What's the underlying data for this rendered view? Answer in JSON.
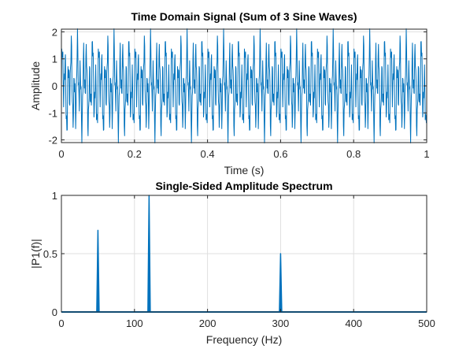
{
  "chart_data": [
    {
      "type": "line",
      "title": "Time Domain Signal (Sum of 3 Sine Waves)",
      "xlabel": "Time (s)",
      "ylabel": "Amplitude",
      "xlim": [
        0,
        1
      ],
      "ylim": [
        -2.1,
        2.1
      ],
      "xticks": [
        "0",
        "0.2",
        "0.4",
        "0.6",
        "0.8",
        "1"
      ],
      "yticks": [
        "-2",
        "-1",
        "0",
        "1",
        "2"
      ],
      "grid": true,
      "series": [
        {
          "signal_components": [
            {
              "frequency_hz": 50,
              "amplitude": 0.7
            },
            {
              "frequency_hz": 120,
              "amplitude": 1.0
            },
            {
              "frequency_hz": 300,
              "amplitude": 0.5
            }
          ],
          "sample_rate_hz": 1000,
          "samples": 1000,
          "color": "#0072BD"
        }
      ]
    },
    {
      "type": "line",
      "title": "Single-Sided Amplitude Spectrum",
      "xlabel": "Frequency (Hz)",
      "ylabel": "|P1(f)|",
      "xlim": [
        0,
        500
      ],
      "ylim": [
        0,
        1
      ],
      "xticks": [
        "0",
        "100",
        "200",
        "300",
        "400",
        "500"
      ],
      "yticks": [
        "0",
        "0.5",
        "1"
      ],
      "grid": true,
      "series": [
        {
          "peaks": [
            {
              "x": 50,
              "y": 0.7
            },
            {
              "x": 120,
              "y": 1.0
            },
            {
              "x": 300,
              "y": 0.5
            }
          ],
          "color": "#0072BD"
        }
      ]
    }
  ]
}
